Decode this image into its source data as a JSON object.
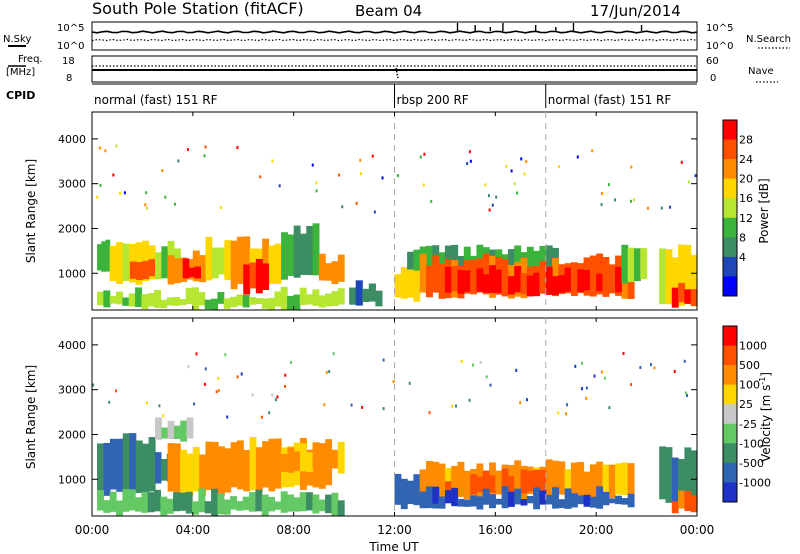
{
  "header": {
    "station": "South Pole Station (fitACF)",
    "beam": "Beam 04",
    "date": "17/Jun/2014"
  },
  "side_labels": {
    "nsky": "N.Sky",
    "freq_line1": "Freq.",
    "freq_line2": "[MHz]",
    "cpid": "CPID",
    "nsearch": "N.Search",
    "nave": "Nave"
  },
  "scales": {
    "noise_top": "10^5",
    "noise_bottom": "10^0",
    "freq_top": "18",
    "freq_bottom": "8",
    "nave_top": "60",
    "nave_bottom": "0"
  },
  "cpid_segments": [
    {
      "label": "normal (fast) 151 RF",
      "start": 0,
      "end": 12
    },
    {
      "label": "rbsp 200 RF",
      "start": 12,
      "end": 18
    },
    {
      "label": "normal (fast) 151 RF",
      "start": 18,
      "end": 24
    }
  ],
  "colors": {
    "power": [
      "#0000ff",
      "#1e46b4",
      "#3c8c64",
      "#3cb43c",
      "#b4e632",
      "#ffd700",
      "#ff8c00",
      "#ff5000",
      "#ff0000"
    ],
    "velocity": [
      "#1e32c8",
      "#3264b4",
      "#3c8c64",
      "#64c864",
      "#c8c8c8",
      "#ffd700",
      "#ff8c00",
      "#ff5000",
      "#ff0000"
    ],
    "grid_dash": "#aaaaaa"
  },
  "chart_data": [
    {
      "type": "heatmap",
      "name": "Power",
      "xlabel": "Time UT",
      "ylabel": "Slant Range [km]",
      "colorbar_label": "Power [dB]",
      "x_ticks": [
        "00:00",
        "04:00",
        "08:00",
        "12:00",
        "16:00",
        "20:00",
        "00:00"
      ],
      "xlim_hours": [
        0,
        24
      ],
      "ylim": [
        180,
        4600
      ],
      "y_ticks": [
        1000,
        2000,
        3000,
        4000
      ],
      "colorbar_ticks": [
        "28",
        "24",
        "20",
        "16",
        "12",
        "8",
        "4"
      ],
      "colorbar_range": [
        0,
        32
      ],
      "regions": [
        {
          "t0": 0.2,
          "t1": 0.7,
          "r0": 1000,
          "r1": 1800,
          "level": 3
        },
        {
          "t0": 0.7,
          "t1": 2.5,
          "r0": 800,
          "r1": 1600,
          "level": 5
        },
        {
          "t0": 1.5,
          "t1": 2.5,
          "r0": 900,
          "r1": 1300,
          "level": 7
        },
        {
          "t0": 2.5,
          "t1": 3.5,
          "r0": 900,
          "r1": 1600,
          "level": 4
        },
        {
          "t0": 3.0,
          "t1": 4.5,
          "r0": 800,
          "r1": 1400,
          "level": 6
        },
        {
          "t0": 3.6,
          "t1": 4.3,
          "r0": 900,
          "r1": 1200,
          "level": 8
        },
        {
          "t0": 4.5,
          "t1": 5.5,
          "r0": 900,
          "r1": 1700,
          "level": 5
        },
        {
          "t0": 5.5,
          "t1": 7.5,
          "r0": 700,
          "r1": 1700,
          "level": 6
        },
        {
          "t0": 6.0,
          "t1": 7.0,
          "r0": 600,
          "r1": 1200,
          "level": 8
        },
        {
          "t0": 7.5,
          "t1": 9.0,
          "r0": 900,
          "r1": 2000,
          "level": 3
        },
        {
          "t0": 9.0,
          "t1": 10.0,
          "r0": 800,
          "r1": 1300,
          "level": 6
        },
        {
          "t0": 0.2,
          "t1": 10.0,
          "r0": 250,
          "r1": 550,
          "level": 4
        },
        {
          "t0": 10.2,
          "t1": 11.5,
          "r0": 300,
          "r1": 700,
          "level": 2
        },
        {
          "t0": 12.0,
          "t1": 13.0,
          "r0": 400,
          "r1": 1100,
          "level": 5
        },
        {
          "t0": 12.5,
          "t1": 18.5,
          "r0": 1100,
          "r1": 1500,
          "level": 3
        },
        {
          "t0": 13.0,
          "t1": 21.5,
          "r0": 500,
          "r1": 1300,
          "level": 7
        },
        {
          "t0": 14.0,
          "t1": 21.0,
          "r0": 550,
          "r1": 1050,
          "level": 8
        },
        {
          "t0": 21.0,
          "t1": 22.0,
          "r0": 800,
          "r1": 1500,
          "level": 4
        },
        {
          "t0": 22.5,
          "t1": 24.0,
          "r0": 300,
          "r1": 1500,
          "level": 5
        },
        {
          "t0": 23.0,
          "t1": 24.0,
          "r0": 300,
          "r1": 700,
          "level": 8
        }
      ]
    },
    {
      "type": "heatmap",
      "name": "Velocity",
      "xlabel": "Time UT",
      "ylabel": "Slant Range [km]",
      "colorbar_label": "Velocity [m s^-1]",
      "x_ticks": [
        "00:00",
        "04:00",
        "08:00",
        "12:00",
        "16:00",
        "20:00",
        "00:00"
      ],
      "xlim_hours": [
        0,
        24
      ],
      "ylim": [
        180,
        4600
      ],
      "y_ticks": [
        1000,
        2000,
        3000,
        4000
      ],
      "colorbar_ticks": [
        "1000",
        "500",
        "100",
        "25",
        "-25",
        "-100",
        "-500",
        "-1000"
      ],
      "regions": [
        {
          "t0": 0.2,
          "t1": 2.5,
          "r0": 700,
          "r1": 1900,
          "level": 2
        },
        {
          "t0": 2.5,
          "t1": 3.2,
          "r0": 900,
          "r1": 1500,
          "level": 2
        },
        {
          "t0": 2.5,
          "t1": 4.0,
          "r0": 1900,
          "r1": 2300,
          "level": 4
        },
        {
          "t0": 3.0,
          "t1": 5.5,
          "r0": 700,
          "r1": 1700,
          "level": 6
        },
        {
          "t0": 5.5,
          "t1": 9.5,
          "r0": 800,
          "r1": 1800,
          "level": 6
        },
        {
          "t0": 7.5,
          "t1": 10.0,
          "r0": 1200,
          "r1": 1700,
          "level": 6
        },
        {
          "t0": 0.2,
          "t1": 10.0,
          "r0": 250,
          "r1": 650,
          "level": 3
        },
        {
          "t0": 12.0,
          "t1": 14.0,
          "r0": 400,
          "r1": 1100,
          "level": 1
        },
        {
          "t0": 13.0,
          "t1": 21.5,
          "r0": 600,
          "r1": 1300,
          "level": 6
        },
        {
          "t0": 14.0,
          "t1": 18.0,
          "r0": 700,
          "r1": 1100,
          "level": 7
        },
        {
          "t0": 12.5,
          "t1": 21.5,
          "r0": 400,
          "r1": 700,
          "level": 1
        },
        {
          "t0": 22.5,
          "t1": 24.0,
          "r0": 500,
          "r1": 1600,
          "level": 2
        },
        {
          "t0": 23.0,
          "t1": 24.0,
          "r0": 300,
          "r1": 600,
          "level": 7
        }
      ]
    }
  ]
}
